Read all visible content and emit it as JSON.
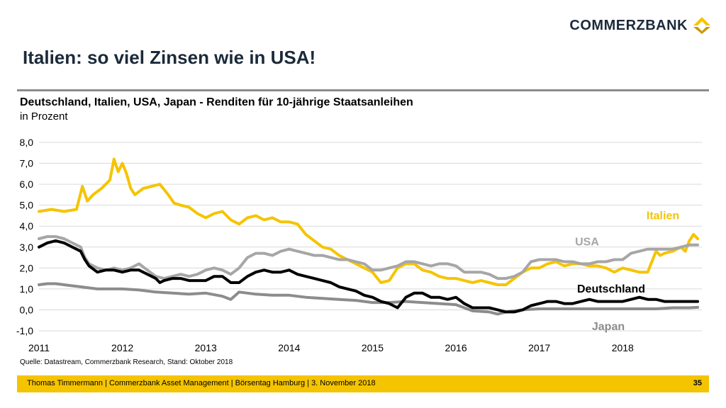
{
  "brand": {
    "name": "COMMERZBANK",
    "color": "#f5c400"
  },
  "title": "Italien: so viel Zinsen wie in USA!",
  "chart_data": {
    "type": "line",
    "title": "Deutschland, Italien, USA, Japan - Renditen für 10-jährige Staatsanleihen",
    "unit": "in Prozent",
    "ylim": [
      -1,
      8
    ],
    "yticks": [
      "8,0",
      "7,0",
      "6,0",
      "5,0",
      "4,0",
      "3,0",
      "2,0",
      "1,0",
      "0,0",
      "-1,0"
    ],
    "xlim": [
      2011.0,
      2018.95
    ],
    "xticks": [
      "2011",
      "2012",
      "2013",
      "2014",
      "2015",
      "2016",
      "2017",
      "2018"
    ],
    "grid": true,
    "legend": "inline-right",
    "series": [
      {
        "name": "Italien",
        "color": "#f5c400",
        "x": [
          2011.0,
          2011.15,
          2011.3,
          2011.45,
          2011.52,
          2011.58,
          2011.65,
          2011.75,
          2011.85,
          2011.9,
          2011.95,
          2012.0,
          2012.05,
          2012.1,
          2012.15,
          2012.25,
          2012.35,
          2012.45,
          2012.55,
          2012.62,
          2012.7,
          2012.8,
          2012.9,
          2013.0,
          2013.1,
          2013.2,
          2013.3,
          2013.4,
          2013.5,
          2013.6,
          2013.7,
          2013.8,
          2013.9,
          2014.0,
          2014.1,
          2014.2,
          2014.3,
          2014.4,
          2014.5,
          2014.6,
          2014.7,
          2014.8,
          2014.9,
          2015.0,
          2015.1,
          2015.2,
          2015.3,
          2015.4,
          2015.5,
          2015.6,
          2015.7,
          2015.8,
          2015.9,
          2016.0,
          2016.1,
          2016.2,
          2016.3,
          2016.4,
          2016.5,
          2016.6,
          2016.7,
          2016.8,
          2016.9,
          2017.0,
          2017.1,
          2017.2,
          2017.3,
          2017.4,
          2017.5,
          2017.6,
          2017.7,
          2017.8,
          2017.9,
          2018.0,
          2018.1,
          2018.2,
          2018.3,
          2018.4,
          2018.45,
          2018.5,
          2018.6,
          2018.7,
          2018.75,
          2018.8,
          2018.85,
          2018.9
        ],
        "values": [
          4.7,
          4.8,
          4.7,
          4.8,
          5.9,
          5.2,
          5.5,
          5.8,
          6.2,
          7.2,
          6.6,
          7.0,
          6.5,
          5.8,
          5.5,
          5.8,
          5.9,
          6.0,
          5.5,
          5.1,
          5.0,
          4.9,
          4.6,
          4.4,
          4.6,
          4.7,
          4.3,
          4.1,
          4.4,
          4.5,
          4.3,
          4.4,
          4.2,
          4.2,
          4.1,
          3.6,
          3.3,
          3.0,
          2.9,
          2.6,
          2.4,
          2.2,
          2.0,
          1.8,
          1.3,
          1.4,
          2.0,
          2.2,
          2.2,
          1.9,
          1.8,
          1.6,
          1.5,
          1.5,
          1.4,
          1.3,
          1.4,
          1.3,
          1.2,
          1.2,
          1.5,
          1.8,
          2.0,
          2.0,
          2.2,
          2.3,
          2.1,
          2.2,
          2.2,
          2.1,
          2.1,
          2.0,
          1.8,
          2.0,
          1.9,
          1.8,
          1.8,
          2.8,
          2.6,
          2.7,
          2.8,
          3.0,
          2.8,
          3.3,
          3.6,
          3.4
        ]
      },
      {
        "name": "USA",
        "color": "#a6a6a6",
        "x": [
          2011.0,
          2011.1,
          2011.2,
          2011.3,
          2011.4,
          2011.5,
          2011.55,
          2011.6,
          2011.7,
          2011.8,
          2011.9,
          2012.0,
          2012.1,
          2012.2,
          2012.3,
          2012.4,
          2012.5,
          2012.6,
          2012.7,
          2012.8,
          2012.9,
          2013.0,
          2013.1,
          2013.2,
          2013.3,
          2013.4,
          2013.5,
          2013.6,
          2013.7,
          2013.8,
          2013.9,
          2014.0,
          2014.1,
          2014.2,
          2014.3,
          2014.4,
          2014.5,
          2014.6,
          2014.7,
          2014.8,
          2014.9,
          2015.0,
          2015.1,
          2015.2,
          2015.3,
          2015.4,
          2015.5,
          2015.6,
          2015.7,
          2015.8,
          2015.9,
          2016.0,
          2016.1,
          2016.2,
          2016.3,
          2016.4,
          2016.5,
          2016.6,
          2016.7,
          2016.8,
          2016.9,
          2017.0,
          2017.1,
          2017.2,
          2017.3,
          2017.4,
          2017.5,
          2017.6,
          2017.7,
          2017.8,
          2017.9,
          2018.0,
          2018.1,
          2018.2,
          2018.3,
          2018.4,
          2018.5,
          2018.6,
          2018.7,
          2018.8,
          2018.9
        ],
        "values": [
          3.4,
          3.5,
          3.5,
          3.4,
          3.2,
          3.0,
          2.5,
          2.2,
          2.0,
          1.9,
          2.0,
          1.9,
          2.0,
          2.2,
          1.9,
          1.6,
          1.5,
          1.6,
          1.7,
          1.6,
          1.7,
          1.9,
          2.0,
          1.9,
          1.7,
          2.0,
          2.5,
          2.7,
          2.7,
          2.6,
          2.8,
          2.9,
          2.8,
          2.7,
          2.6,
          2.6,
          2.5,
          2.4,
          2.4,
          2.3,
          2.2,
          1.9,
          1.9,
          2.0,
          2.1,
          2.3,
          2.3,
          2.2,
          2.1,
          2.2,
          2.2,
          2.1,
          1.8,
          1.8,
          1.8,
          1.7,
          1.5,
          1.5,
          1.6,
          1.8,
          2.3,
          2.4,
          2.4,
          2.4,
          2.3,
          2.3,
          2.2,
          2.2,
          2.3,
          2.3,
          2.4,
          2.4,
          2.7,
          2.8,
          2.9,
          2.9,
          2.9,
          2.9,
          3.0,
          3.1,
          3.1
        ]
      },
      {
        "name": "Deutschland",
        "color": "#000000",
        "x": [
          2011.0,
          2011.1,
          2011.2,
          2011.3,
          2011.4,
          2011.5,
          2011.55,
          2011.6,
          2011.7,
          2011.8,
          2011.9,
          2012.0,
          2012.1,
          2012.2,
          2012.3,
          2012.4,
          2012.45,
          2012.5,
          2012.6,
          2012.7,
          2012.8,
          2012.9,
          2013.0,
          2013.1,
          2013.2,
          2013.3,
          2013.4,
          2013.5,
          2013.6,
          2013.7,
          2013.8,
          2013.9,
          2014.0,
          2014.1,
          2014.2,
          2014.3,
          2014.4,
          2014.5,
          2014.6,
          2014.7,
          2014.8,
          2014.9,
          2015.0,
          2015.1,
          2015.2,
          2015.3,
          2015.4,
          2015.5,
          2015.6,
          2015.7,
          2015.8,
          2015.9,
          2016.0,
          2016.1,
          2016.2,
          2016.3,
          2016.4,
          2016.5,
          2016.6,
          2016.7,
          2016.8,
          2016.9,
          2017.0,
          2017.1,
          2017.2,
          2017.3,
          2017.4,
          2017.5,
          2017.6,
          2017.7,
          2017.8,
          2017.9,
          2018.0,
          2018.1,
          2018.2,
          2018.3,
          2018.4,
          2018.5,
          2018.6,
          2018.7,
          2018.8,
          2018.9
        ],
        "values": [
          3.0,
          3.2,
          3.3,
          3.2,
          3.0,
          2.8,
          2.4,
          2.1,
          1.8,
          1.9,
          1.9,
          1.8,
          1.9,
          1.9,
          1.7,
          1.5,
          1.3,
          1.4,
          1.5,
          1.5,
          1.4,
          1.4,
          1.4,
          1.6,
          1.6,
          1.3,
          1.3,
          1.6,
          1.8,
          1.9,
          1.8,
          1.8,
          1.9,
          1.7,
          1.6,
          1.5,
          1.4,
          1.3,
          1.1,
          1.0,
          0.9,
          0.7,
          0.6,
          0.4,
          0.3,
          0.1,
          0.6,
          0.8,
          0.8,
          0.6,
          0.6,
          0.5,
          0.6,
          0.3,
          0.1,
          0.1,
          0.1,
          0.0,
          -0.1,
          -0.1,
          0.0,
          0.2,
          0.3,
          0.4,
          0.4,
          0.3,
          0.3,
          0.4,
          0.5,
          0.4,
          0.4,
          0.4,
          0.4,
          0.5,
          0.6,
          0.5,
          0.5,
          0.4,
          0.4,
          0.4,
          0.4,
          0.4
        ]
      },
      {
        "name": "Japan",
        "color": "#8c8c8c",
        "x": [
          2011.0,
          2011.1,
          2011.2,
          2011.3,
          2011.4,
          2011.5,
          2011.6,
          2011.7,
          2011.8,
          2011.9,
          2012.0,
          2012.2,
          2012.4,
          2012.6,
          2012.8,
          2013.0,
          2013.2,
          2013.3,
          2013.4,
          2013.5,
          2013.6,
          2013.8,
          2014.0,
          2014.2,
          2014.4,
          2014.6,
          2014.8,
          2015.0,
          2015.2,
          2015.4,
          2015.6,
          2015.8,
          2016.0,
          2016.1,
          2016.2,
          2016.4,
          2016.5,
          2016.6,
          2016.8,
          2017.0,
          2017.2,
          2017.4,
          2017.6,
          2017.8,
          2018.0,
          2018.2,
          2018.4,
          2018.6,
          2018.8,
          2018.9
        ],
        "values": [
          1.2,
          1.25,
          1.25,
          1.2,
          1.15,
          1.1,
          1.05,
          1.0,
          1.0,
          1.0,
          1.0,
          0.95,
          0.85,
          0.8,
          0.75,
          0.8,
          0.65,
          0.5,
          0.85,
          0.8,
          0.75,
          0.7,
          0.7,
          0.6,
          0.55,
          0.5,
          0.45,
          0.35,
          0.35,
          0.4,
          0.35,
          0.3,
          0.25,
          0.1,
          -0.05,
          -0.1,
          -0.2,
          -0.1,
          0.0,
          0.05,
          0.05,
          0.05,
          0.05,
          0.05,
          0.05,
          0.05,
          0.05,
          0.1,
          0.1,
          0.12
        ]
      }
    ]
  },
  "source": "Quelle: Datastream, Commerzbank Research, Stand: Oktober 2018",
  "footer": {
    "text": "Thomas Timmermann | Commerzbank Asset Management | Börsentag Hamburg | 3. November 2018",
    "page": "35"
  }
}
